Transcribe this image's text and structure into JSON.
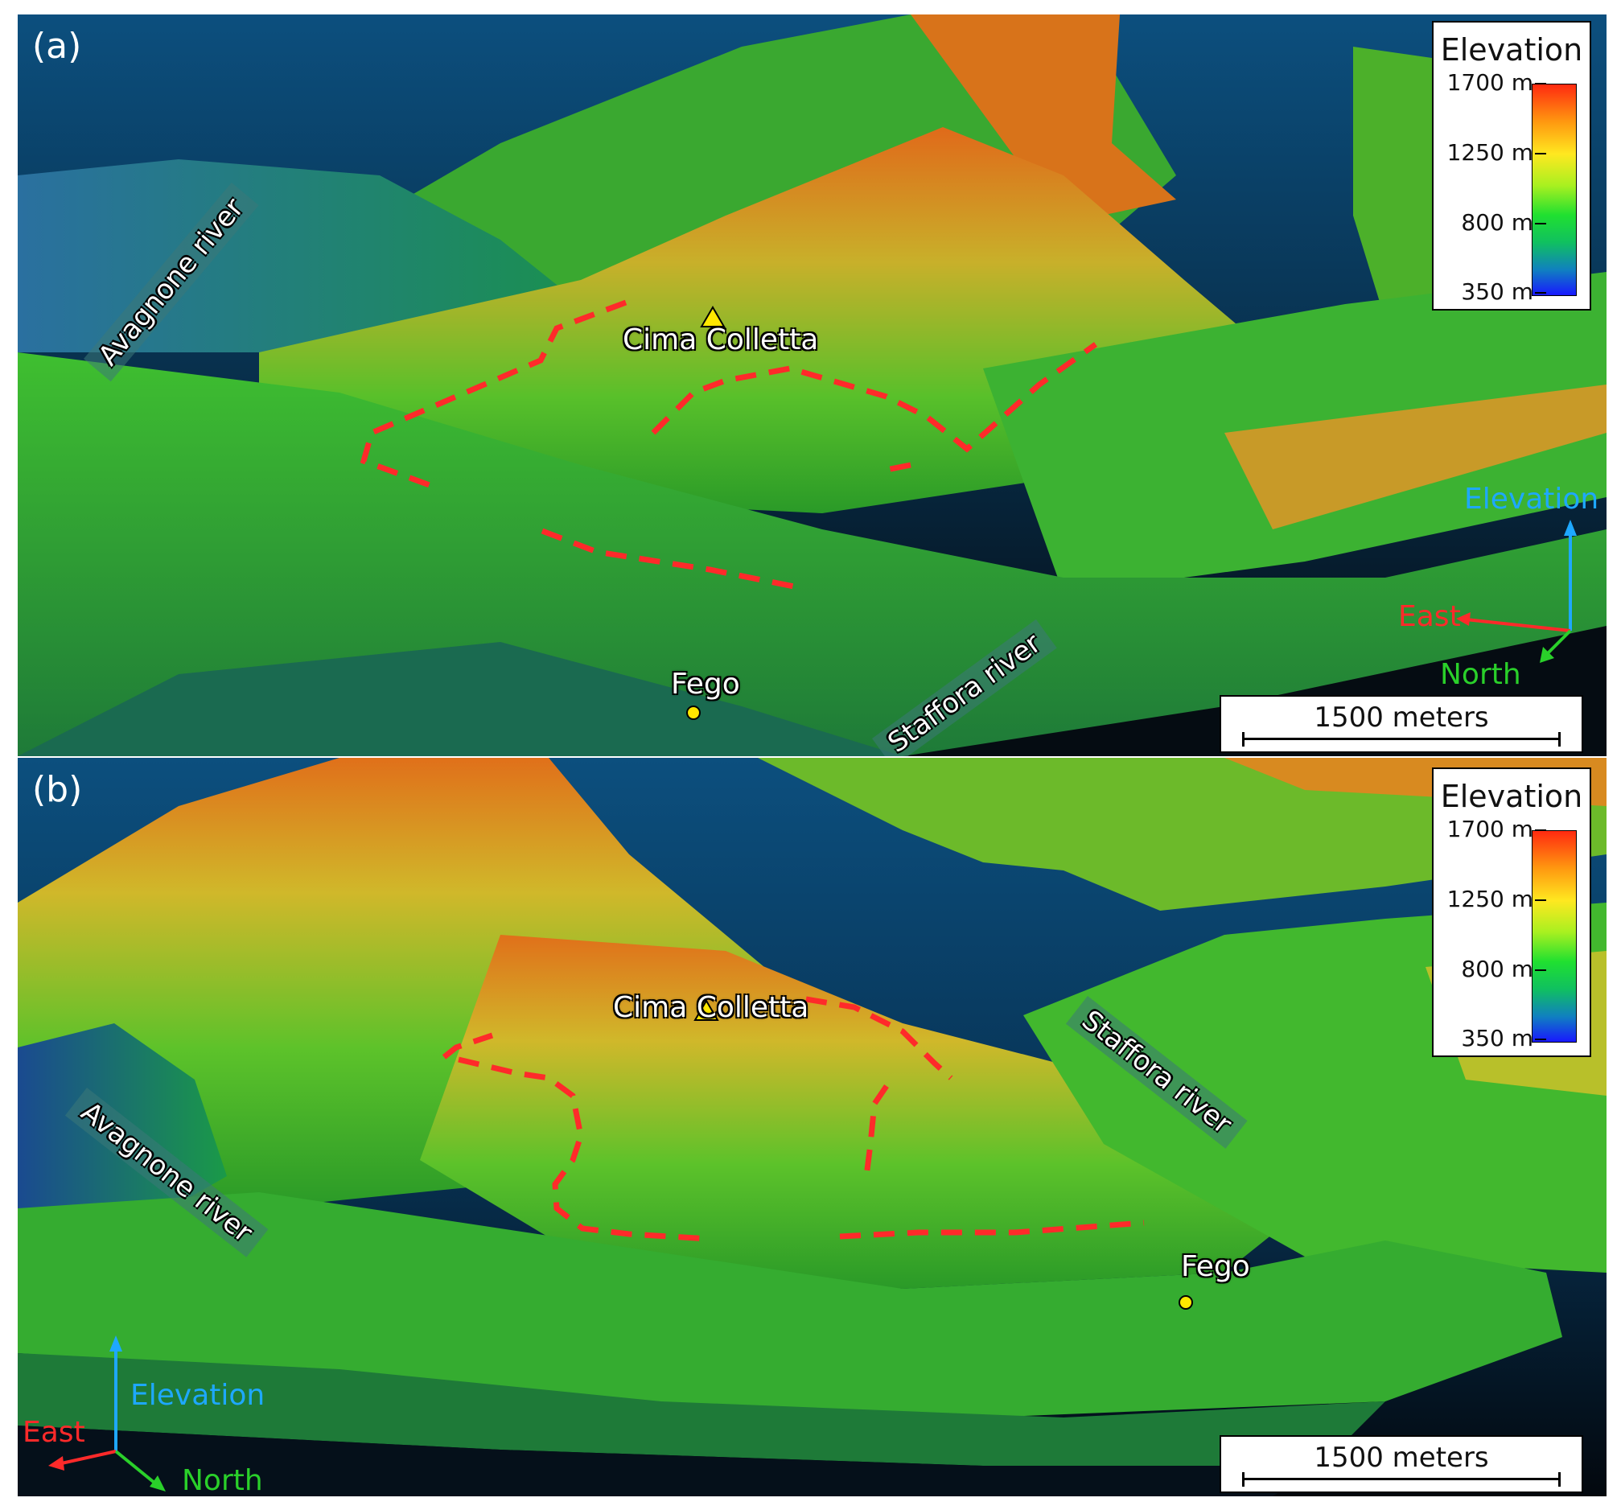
{
  "colors": {
    "sky_top": "#0a4a78",
    "sky_bottom": "#05101a",
    "terrain_green": "#2fb82a",
    "terrain_orange": "#e08a20",
    "boundary_red": "#ff2a2a",
    "marker_yellow": "#ffe800",
    "east_axis": "#ff2a2a",
    "north_axis": "#2ad02a",
    "elevation_axis": "#1ea8ff"
  },
  "legend": {
    "title": "Elevation",
    "ticks": [
      "1700 m",
      "1250 m",
      "800 m",
      "350 m"
    ]
  },
  "scale_bar": {
    "label": "1500 meters"
  },
  "axes": {
    "elevation": "Elevation",
    "east": "East",
    "north": "North"
  },
  "panel_a": {
    "label": "(a)",
    "peak": "Cima Colletta",
    "village": "Fego",
    "river_west": "Avagnone river",
    "river_east": "Staffora river"
  },
  "panel_b": {
    "label": "(b)",
    "peak": "Cima Colletta",
    "village": "Fego",
    "river_west": "Avagnone river",
    "river_east": "Staffora river"
  },
  "icons": {
    "peak_marker": "triangle-icon",
    "village_marker": "circle-icon",
    "axis_triad": "axis-triad-icon"
  }
}
